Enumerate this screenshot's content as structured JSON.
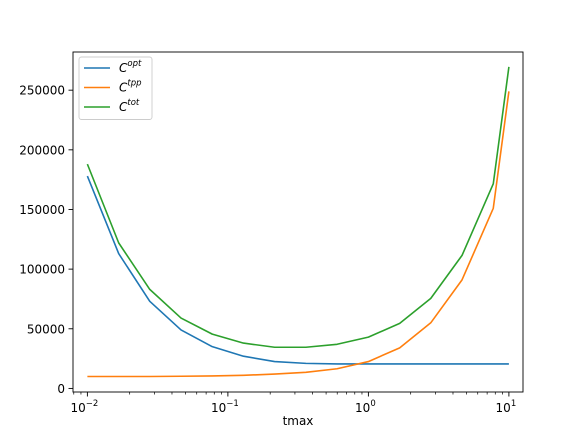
{
  "chart_data": {
    "type": "line",
    "xscale": "log",
    "xlabel": "tmax",
    "ylabel": "",
    "xlim": [
      0.0079,
      12.6
    ],
    "ylim": [
      -3000,
      282000
    ],
    "grid": false,
    "legend_position": "top-left",
    "x_ticks": [
      {
        "value": 0.01,
        "base": "10",
        "exp": "−2"
      },
      {
        "value": 0.1,
        "base": "10",
        "exp": "−1"
      },
      {
        "value": 1,
        "base": "10",
        "exp": "0"
      },
      {
        "value": 10,
        "base": "10",
        "exp": "1"
      }
    ],
    "y_ticks": [
      {
        "value": 0,
        "label": "0"
      },
      {
        "value": 50000,
        "label": "50000"
      },
      {
        "value": 100000,
        "label": "100000"
      },
      {
        "value": 150000,
        "label": "150000"
      },
      {
        "value": 200000,
        "label": "200000"
      },
      {
        "value": 250000,
        "label": "250000"
      }
    ],
    "x": [
      0.01,
      0.01668,
      0.02783,
      0.04642,
      0.07743,
      0.1292,
      0.2154,
      0.3594,
      0.5995,
      1.0,
      1.668,
      2.783,
      4.642,
      7.743,
      12.92
    ],
    "series": [
      {
        "name_base": "C",
        "name_sup": "opt",
        "color": "#1f77b4",
        "x": [
          0.01,
          0.0167,
          0.0278,
          0.0464,
          0.0774,
          0.129,
          0.215,
          0.359,
          0.599,
          1.0,
          1.67,
          2.78,
          4.64,
          7.74,
          10.0
        ],
        "values": [
          178000,
          113000,
          73000,
          49000,
          35000,
          27000,
          22500,
          21000,
          20500,
          20500,
          20500,
          20500,
          20500,
          20500,
          20500
        ]
      },
      {
        "name_base": "C",
        "name_sup": "tpp",
        "color": "#ff7f0e",
        "x": [
          0.01,
          0.0167,
          0.0278,
          0.0464,
          0.0774,
          0.129,
          0.215,
          0.359,
          0.599,
          1.0,
          1.67,
          2.78,
          4.64,
          7.74,
          10.0
        ],
        "values": [
          10000,
          10000,
          10000,
          10200,
          10500,
          11000,
          12000,
          13500,
          16500,
          22500,
          34000,
          55000,
          91000,
          151000,
          249000
        ]
      },
      {
        "name_base": "C",
        "name_sup": "tot",
        "color": "#2ca02c",
        "x": [
          0.01,
          0.0167,
          0.0278,
          0.0464,
          0.0774,
          0.129,
          0.215,
          0.359,
          0.599,
          1.0,
          1.67,
          2.78,
          4.64,
          7.74,
          10.0
        ],
        "values": [
          188000,
          122000,
          83000,
          59000,
          45500,
          38000,
          34500,
          34500,
          37000,
          43000,
          54500,
          75500,
          111500,
          171500,
          269500
        ]
      }
    ]
  }
}
